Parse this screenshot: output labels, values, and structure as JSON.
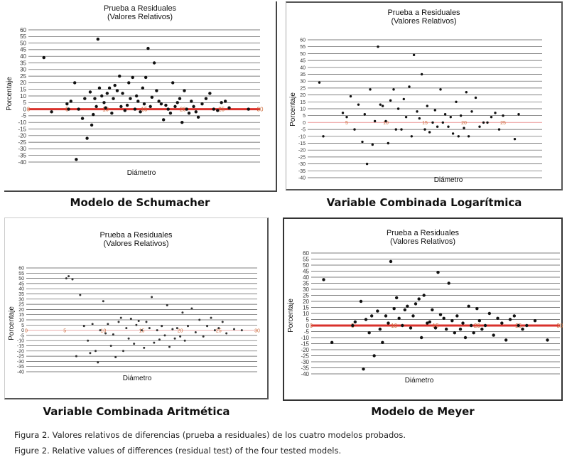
{
  "chart_data": [
    {
      "type": "scatter",
      "title_line1": "Prueba a Residuales",
      "title_line2": "(Valores Relativos)",
      "ylabel": "Porcentaje",
      "xlabel": "Diámetro",
      "model_name": "Modelo de Schumacher",
      "ylim": [
        -40,
        60
      ],
      "xlim": [
        0,
        30
      ],
      "yticks": [
        60,
        55,
        50,
        45,
        40,
        35,
        30,
        25,
        20,
        15,
        10,
        5,
        0,
        -5,
        -10,
        -15,
        -20,
        -25,
        -30,
        -35,
        -40
      ],
      "xticks": [
        0,
        5,
        10,
        15,
        20,
        25,
        30
      ],
      "grid": true,
      "zero_line_color": "#d9322c",
      "point_color": "#111111",
      "x": [
        2,
        3,
        5,
        5.2,
        5.5,
        6,
        6.2,
        6.5,
        7,
        7.3,
        7.6,
        8,
        8.2,
        8.4,
        8.6,
        8.8,
        9,
        9.2,
        9.5,
        9.8,
        10,
        10.2,
        10.5,
        10.8,
        11,
        11.2,
        11.5,
        11.8,
        12,
        12.2,
        12.5,
        12.8,
        13,
        13.2,
        13.5,
        13.8,
        14,
        14.2,
        14.5,
        14.8,
        15,
        15.2,
        15.5,
        15.8,
        16,
        16.3,
        16.6,
        16.9,
        17.2,
        17.5,
        17.8,
        18.1,
        18.4,
        18.7,
        19,
        19.3,
        19.6,
        19.9,
        20.2,
        20.5,
        20.8,
        21.1,
        21.4,
        21.7,
        22,
        22.5,
        23,
        23.5,
        24,
        24.5,
        25,
        25.5,
        26,
        28.5
      ],
      "y": [
        39,
        -2,
        4,
        0,
        6,
        20,
        -38,
        0,
        -7,
        8,
        -22,
        13,
        -12,
        -4,
        8,
        2,
        53,
        16,
        10,
        5,
        1,
        12,
        16,
        -3,
        8,
        18,
        14,
        25,
        2,
        12,
        -1,
        3,
        20,
        8,
        24,
        0,
        10,
        6,
        -2,
        16,
        4,
        24,
        46,
        2,
        9,
        35,
        14,
        6,
        4,
        -8,
        3,
        0,
        -3,
        20,
        2,
        5,
        8,
        -10,
        14,
        0,
        -3,
        6,
        2,
        -2,
        -6,
        4,
        8,
        12,
        0,
        -1,
        5,
        6,
        1,
        0
      ]
    },
    {
      "type": "scatter",
      "title_line1": "Prueba a Residuales",
      "title_line2": "(Valores Relativos)",
      "ylabel": "Porcentaje",
      "xlabel": "Diámetro",
      "model_name": "Variable Combinada Logarítmica",
      "ylim": [
        -40,
        60
      ],
      "xlim": [
        0,
        30
      ],
      "yticks": [
        60,
        55,
        50,
        45,
        40,
        35,
        30,
        25,
        20,
        15,
        10,
        5,
        0,
        -5,
        -10,
        -15,
        -20,
        -25,
        -30,
        -35,
        -40
      ],
      "xticks": [
        5,
        10,
        15,
        20,
        25
      ],
      "grid": true,
      "zero_line_color": "#f0b0b0",
      "point_color": "#111111",
      "x": [
        1.5,
        2,
        4.5,
        5,
        5.5,
        6,
        6.5,
        7,
        7.3,
        7.6,
        8,
        8.3,
        8.6,
        9,
        9.3,
        9.6,
        10,
        10.3,
        10.6,
        11,
        11.3,
        11.6,
        12,
        12.3,
        12.6,
        13,
        13.3,
        13.6,
        14,
        14.3,
        14.6,
        15,
        15.3,
        15.6,
        16,
        16.3,
        16.6,
        17,
        17.3,
        17.6,
        18,
        18.3,
        18.6,
        19,
        19.3,
        19.6,
        20,
        20.3,
        20.6,
        21,
        21.5,
        22,
        22.5,
        23,
        23.5,
        24,
        24.5,
        25,
        26.5,
        27
      ],
      "y": [
        29,
        -10,
        7,
        4,
        19,
        -5,
        13,
        -14,
        6,
        -30,
        24,
        -16,
        1,
        55,
        13,
        12,
        1,
        -15,
        16,
        24,
        -5,
        10,
        -5,
        17,
        4,
        26,
        -10,
        49,
        8,
        3,
        35,
        -5,
        12,
        -7,
        0,
        9,
        -3,
        24,
        0,
        6,
        -3,
        4,
        -8,
        15,
        -10,
        5,
        -4,
        22,
        -10,
        8,
        18,
        -3,
        0,
        0,
        4,
        7,
        -5,
        5,
        -12,
        6
      ]
    },
    {
      "type": "scatter",
      "title_line1": "Prueba a Residuales",
      "title_line2": "(Valores Relativos)",
      "ylabel": "Porcentaje",
      "xlabel": "Diámetro",
      "model_name": "Variable Combinada Aritmética",
      "ylim": [
        -40,
        60
      ],
      "xlim": [
        0,
        30
      ],
      "yticks": [
        60,
        55,
        50,
        45,
        40,
        35,
        30,
        25,
        20,
        15,
        10,
        5,
        0,
        -5,
        -10,
        -15,
        -20,
        -25,
        -30,
        -35,
        -40
      ],
      "xticks": [
        0,
        5,
        10,
        15,
        20,
        25,
        30
      ],
      "grid": true,
      "zero_line_color": "#f3b8b8",
      "point_color": "#333333",
      "x": [
        5.2,
        5.5,
        6,
        6.5,
        7,
        7.5,
        8,
        8.3,
        8.6,
        9,
        9.3,
        9.6,
        10,
        10.3,
        10.6,
        11,
        11.3,
        11.6,
        12,
        12.3,
        12.6,
        13,
        13.3,
        13.6,
        14,
        14.3,
        14.6,
        15,
        15.3,
        15.6,
        16,
        16.3,
        16.6,
        17,
        17.3,
        17.6,
        18,
        18.3,
        18.6,
        19,
        19.3,
        19.6,
        20,
        20.3,
        20.6,
        21,
        21.5,
        22,
        22.5,
        23,
        23.5,
        24,
        24.5,
        25,
        25.5,
        26,
        27,
        28
      ],
      "y": [
        50,
        52,
        49,
        -25,
        34,
        4,
        -10,
        -22,
        6,
        -20,
        -31,
        0,
        28,
        -3,
        6,
        -15,
        -4,
        -26,
        8,
        12,
        -20,
        2,
        -8,
        11,
        -13,
        5,
        9,
        0,
        -17,
        8,
        2,
        32,
        -12,
        0,
        -9,
        4,
        -5,
        24,
        -16,
        1,
        -8,
        2,
        -6,
        17,
        -10,
        4,
        21,
        -2,
        10,
        -6,
        4,
        12,
        0,
        2,
        8,
        -3,
        1,
        0
      ]
    },
    {
      "type": "scatter",
      "title_line1": "Prueba a Residuales",
      "title_line2": "(Valores Relativos)",
      "ylabel": "Porcentaje",
      "xlabel": "Diámetro",
      "model_name": "Modelo de Meyer",
      "ylim": [
        -40,
        60
      ],
      "xlim": [
        0,
        30
      ],
      "yticks": [
        60,
        55,
        50,
        45,
        40,
        35,
        30,
        25,
        20,
        15,
        10,
        5,
        0,
        -5,
        -10,
        -15,
        -20,
        -25,
        -30,
        -35,
        -40
      ],
      "xticks": [
        0,
        5,
        10,
        15,
        20,
        25,
        30
      ],
      "grid": true,
      "zero_line_color": "#d9322c",
      "point_color": "#111111",
      "x": [
        1.5,
        2.5,
        5,
        5.3,
        6,
        6.3,
        6.6,
        7,
        7.3,
        7.6,
        8,
        8.3,
        8.6,
        9,
        9.3,
        9.6,
        10,
        10.3,
        10.6,
        11,
        11.3,
        11.6,
        12,
        12.3,
        12.6,
        13,
        13.3,
        13.6,
        14,
        14.3,
        14.6,
        15,
        15.3,
        15.6,
        16,
        16.3,
        16.6,
        17,
        17.3,
        17.6,
        18,
        18.3,
        18.6,
        19,
        19.3,
        19.6,
        20,
        20.3,
        20.6,
        21,
        21.5,
        22,
        22.5,
        23,
        23.5,
        24,
        24.5,
        25,
        25.5,
        26,
        27,
        28.5
      ],
      "y": [
        38,
        -14,
        0,
        3,
        20,
        -36,
        5,
        -6,
        8,
        -25,
        12,
        -3,
        -14,
        8,
        2,
        53,
        14,
        23,
        6,
        0,
        13,
        16,
        -2,
        8,
        18,
        22,
        -10,
        25,
        2,
        3,
        13,
        -2,
        44,
        9,
        6,
        -3,
        35,
        4,
        -6,
        8,
        -3,
        2,
        -10,
        16,
        0,
        -6,
        14,
        4,
        -3,
        0,
        10,
        -8,
        6,
        2,
        -12,
        5,
        8,
        0,
        -3,
        0,
        4,
        -12
      ]
    }
  ],
  "caption": {
    "es": "Figura 2. Valores relativos de diferencias (prueba a residuales) de los cuatro modelos probados.",
    "en": "Figure 2. Relative values of differences (residual test) of the four tested models."
  }
}
